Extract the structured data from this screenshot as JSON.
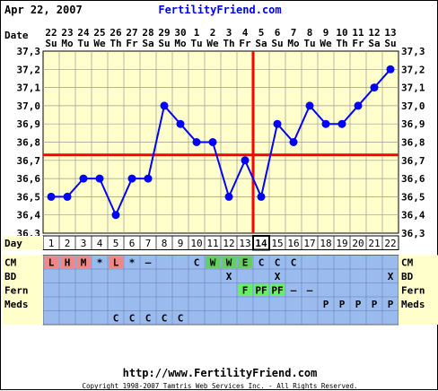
{
  "header": {
    "date": "Apr 22, 2007",
    "site": "FertilityFriend.com"
  },
  "footer": {
    "url": "http://www.FertilityFriend.com",
    "copyright": "Copyright 1998-2007 Tamtris Web Services Inc. - All Rights Reserved."
  },
  "colors": {
    "plot_bg": "#ffffcc",
    "grid": "#999999",
    "line": "#0000ff",
    "coverline": "#ff0000",
    "table_bg": "#99bbee",
    "day_row_bg": "#ffffff",
    "label_bg": "#ffffcc",
    "cm_red": "#ee8888",
    "cm_green": "#66cc66",
    "fern_green": "#66ee66"
  },
  "chart_data": {
    "type": "line",
    "title": "",
    "xlabel": "",
    "ylabel": "",
    "ylim": [
      36.3,
      37.3
    ],
    "ytick_labels": [
      "37,3",
      "37,2",
      "37,1",
      "37,0",
      "36,9",
      "36,8",
      "36,7",
      "36,6",
      "36,5",
      "36,4",
      "36,3"
    ],
    "date_label": "Date",
    "dates": [
      "22",
      "23",
      "24",
      "25",
      "26",
      "27",
      "28",
      "29",
      "30",
      "1",
      "2",
      "3",
      "4",
      "5",
      "6",
      "7",
      "8",
      "9",
      "10",
      "11",
      "12",
      "13"
    ],
    "weekdays": [
      "Su",
      "Mo",
      "Tu",
      "We",
      "Th",
      "Fr",
      "Sa",
      "Su",
      "Mo",
      "Tu",
      "We",
      "Th",
      "Fr",
      "Sa",
      "Su",
      "Mo",
      "Tu",
      "We",
      "Th",
      "Fr",
      "Sa",
      "Su"
    ],
    "day_label": "Day",
    "days": [
      "1",
      "2",
      "3",
      "4",
      "5",
      "6",
      "7",
      "8",
      "9",
      "10",
      "11",
      "12",
      "13",
      "14",
      "15",
      "16",
      "17",
      "18",
      "19",
      "20",
      "21",
      "22"
    ],
    "series": [
      {
        "values": [
          36.5,
          36.5,
          36.6,
          36.6,
          36.4,
          36.6,
          36.6,
          37.0,
          36.9,
          36.8,
          36.8,
          36.5,
          36.7,
          36.5,
          36.9,
          36.8,
          37.0,
          36.9,
          36.9,
          37.0,
          37.1,
          37.2
        ]
      }
    ],
    "coverline": 36.73,
    "ovulation_day": 14,
    "grid": true
  },
  "rows": [
    {
      "label": "CM",
      "cells": [
        "L",
        "H",
        "M",
        "*",
        "L",
        "*",
        "–",
        "",
        "",
        "C",
        "W",
        "W",
        "E",
        "C",
        "C",
        "C",
        "",
        "",
        "",
        "",
        "",
        ""
      ],
      "bg": [
        "red",
        "red",
        "red",
        "",
        "red",
        "",
        "",
        "",
        "",
        "",
        "green",
        "green",
        "green",
        "",
        "",
        "",
        "",
        "",
        "",
        "",
        "",
        ""
      ]
    },
    {
      "label": "BD",
      "cells": [
        "",
        "",
        "",
        "",
        "",
        "",
        "",
        "",
        "",
        "",
        "",
        "X",
        "",
        "",
        "X",
        "",
        "",
        "",
        "",
        "",
        "",
        "X"
      ],
      "bg": [
        "",
        "",
        "",
        "",
        "",
        "",
        "",
        "",
        "",
        "",
        "",
        "",
        "",
        "",
        "",
        "",
        "",
        "",
        "",
        "",
        "",
        ""
      ]
    },
    {
      "label": "Fern",
      "cells": [
        "",
        "",
        "",
        "",
        "",
        "",
        "",
        "",
        "",
        "",
        "",
        "",
        "F",
        "PF",
        "PF",
        "–",
        "–",
        "",
        "",
        "",
        "",
        ""
      ],
      "bg": [
        "",
        "",
        "",
        "",
        "",
        "",
        "",
        "",
        "",
        "",
        "",
        "",
        "fern",
        "fern",
        "fern",
        "",
        "",
        "",
        "",
        "",
        "",
        ""
      ]
    },
    {
      "label": "Meds",
      "cells": [
        "",
        "",
        "",
        "",
        "",
        "",
        "",
        "",
        "",
        "",
        "",
        "",
        "",
        "",
        "",
        "",
        "",
        "P",
        "P",
        "P",
        "P",
        "P"
      ],
      "bg": [
        "",
        "",
        "",
        "",
        "",
        "",
        "",
        "",
        "",
        "",
        "",
        "",
        "",
        "",
        "",
        "",
        "",
        "",
        "",
        "",
        "",
        ""
      ]
    },
    {
      "label": "",
      "cells": [
        "",
        "",
        "",
        "",
        "C",
        "C",
        "C",
        "C",
        "C",
        "",
        "",
        "",
        "",
        "",
        "",
        "",
        "",
        "",
        "",
        "",
        "",
        ""
      ],
      "bg": [
        "",
        "",
        "",
        "",
        "",
        "",
        "",
        "",
        "",
        "",
        "",
        "",
        "",
        "",
        "",
        "",
        "",
        "",
        "",
        "",
        "",
        ""
      ]
    }
  ]
}
